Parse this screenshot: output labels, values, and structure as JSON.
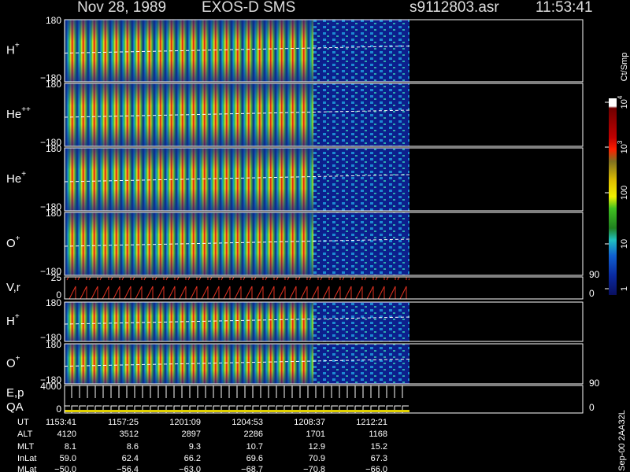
{
  "header": {
    "date": "Nov 28, 1989",
    "instrument": "EXOS-D SMS",
    "file": "s9112803.asr",
    "time": "11:53:41"
  },
  "panels": [
    {
      "label": "H",
      "sup": "+",
      "ticks": [
        "180",
        "−180"
      ]
    },
    {
      "label": "He",
      "sup": "++",
      "ticks": [
        "180",
        "−180"
      ]
    },
    {
      "label": "He",
      "sup": "+",
      "ticks": [
        "180",
        "−180"
      ]
    },
    {
      "label": "O",
      "sup": "+",
      "ticks": [
        "180",
        "−180"
      ]
    },
    {
      "label": "V,r",
      "ticks": [
        "25",
        "0"
      ],
      "right_ticks": [
        "90",
        "0"
      ]
    },
    {
      "label": "H",
      "sup": "+",
      "ticks": [
        "180",
        "−180"
      ]
    },
    {
      "label": "O",
      "sup": "+",
      "ticks": [
        "180",
        "−180"
      ]
    },
    {
      "label": "E,p",
      "label2": "QA",
      "ticks": [
        "4000",
        "0"
      ],
      "right_ticks": [
        "90",
        "0"
      ]
    }
  ],
  "colorbar": {
    "unit": "Ct/Smp",
    "ticks": [
      {
        "text": "1"
      },
      {
        "text": "10"
      },
      {
        "text": "100"
      },
      {
        "base": "10",
        "exp": "3"
      },
      {
        "base": "10",
        "exp": "4"
      }
    ]
  },
  "table": {
    "rows": [
      {
        "label": "UT",
        "cells": [
          "1153:41",
          "1157:25",
          "1201:09",
          "1204:53",
          "1208:37",
          "1212:21"
        ]
      },
      {
        "label": "ALT",
        "cells": [
          "4120",
          "3512",
          "2897",
          "2286",
          "1701",
          "1168"
        ]
      },
      {
        "label": "MLT",
        "cells": [
          "8.1",
          "8.6",
          "9.3",
          "10.7",
          "12.9",
          "15.2"
        ]
      },
      {
        "label": "InLat",
        "cells": [
          "59.0",
          "62.4",
          "66.2",
          "69.6",
          "70.9",
          "67.3"
        ]
      },
      {
        "label": "MLat",
        "cells": [
          "−50.0",
          "−56.4",
          "−63.0",
          "−68.7",
          "−70.8",
          "−66.0"
        ]
      }
    ]
  },
  "footer": "Sep-00 2AA32L"
}
